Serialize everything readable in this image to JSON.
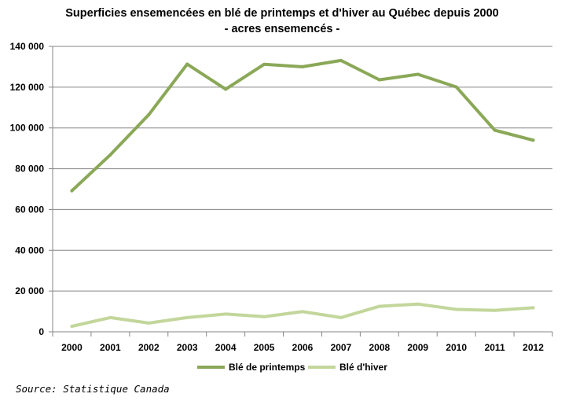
{
  "chart_data": {
    "type": "line",
    "title": "Superficies ensemencées en blé de printemps et d'hiver au Québec depuis 2000",
    "subtitle": "- acres ensemencés -",
    "categories": [
      "2000",
      "2001",
      "2002",
      "2003",
      "2004",
      "2005",
      "2006",
      "2007",
      "2008",
      "2009",
      "2010",
      "2011",
      "2012"
    ],
    "series": [
      {
        "name": "Blé de printemps",
        "color": "#8aa857",
        "values": [
          69200,
          86800,
          106500,
          131300,
          119000,
          131200,
          130000,
          133100,
          123600,
          126300,
          120100,
          98900,
          94000
        ]
      },
      {
        "name": "Blé d'hiver",
        "color": "#c3d69b",
        "values": [
          2700,
          7000,
          4300,
          7000,
          8700,
          7400,
          9900,
          7000,
          12500,
          13600,
          11000,
          10500,
          11800
        ]
      }
    ],
    "ylim": [
      0,
      140000
    ],
    "yticks": [
      0,
      20000,
      40000,
      60000,
      80000,
      100000,
      120000,
      140000
    ],
    "ytick_labels": [
      "0",
      "20 000",
      "40 000",
      "60 000",
      "80 000",
      "100 000",
      "120 000",
      "140 000"
    ],
    "xlabel": "",
    "ylabel": "",
    "grid": true,
    "legend_position": "bottom"
  },
  "source": "Source: Statistique Canada"
}
